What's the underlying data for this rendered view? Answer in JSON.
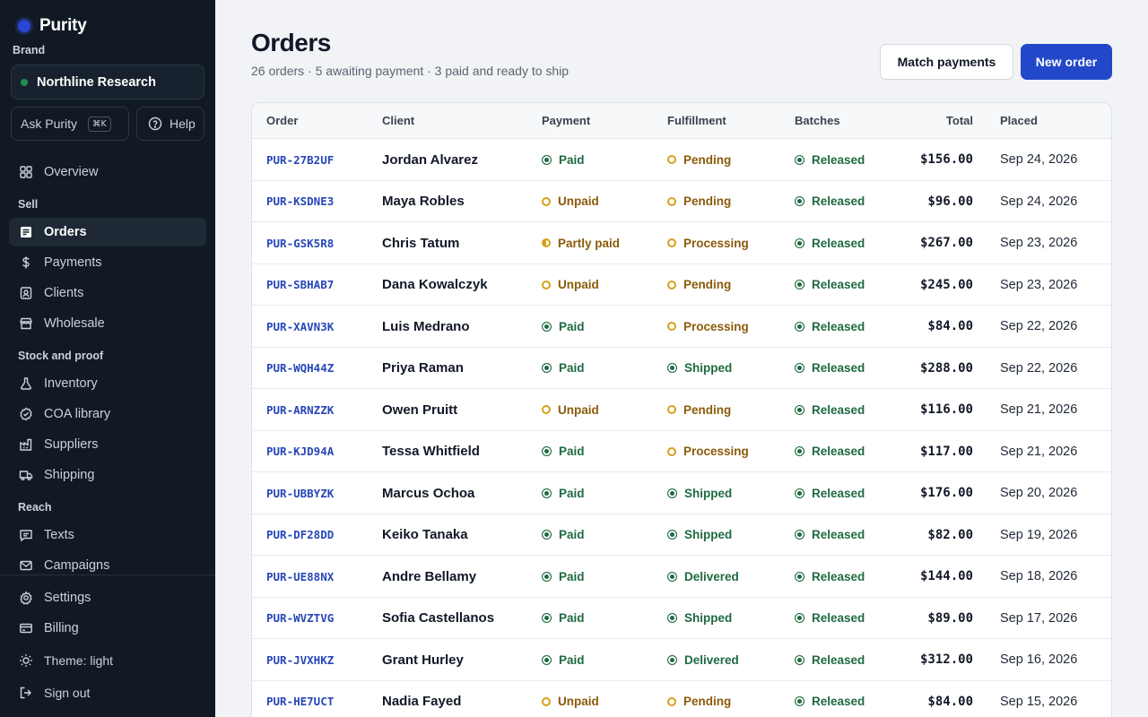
{
  "app": {
    "name": "Purity"
  },
  "sidebar": {
    "brand_label": "Brand",
    "brand_name": "Northline Research",
    "ask_label": "Ask Purity",
    "ask_shortcut": "⌘K",
    "help_label": "Help",
    "overview": "Overview",
    "sections": {
      "sell": "Sell",
      "stock": "Stock and proof",
      "reach": "Reach"
    },
    "items": {
      "orders": "Orders",
      "payments": "Payments",
      "clients": "Clients",
      "wholesale": "Wholesale",
      "inventory": "Inventory",
      "coa": "COA library",
      "suppliers": "Suppliers",
      "shipping": "Shipping",
      "texts": "Texts",
      "campaigns": "Campaigns",
      "settings": "Settings",
      "billing": "Billing",
      "theme": "Theme: light",
      "signout": "Sign out"
    }
  },
  "header": {
    "title": "Orders",
    "subtitle": "26 orders · 5 awaiting payment · 3 paid and ready to ship",
    "match_label": "Match payments",
    "new_label": "New order"
  },
  "table": {
    "columns": {
      "order": "Order",
      "client": "Client",
      "payment": "Payment",
      "fulfillment": "Fulfillment",
      "batches": "Batches",
      "total": "Total",
      "placed": "Placed"
    },
    "rows": [
      {
        "order": "PUR-27B2UF",
        "client": "Jordan Alvarez",
        "payment": "Paid",
        "fulfillment": "Pending",
        "batches": "Released",
        "total": "$156.00",
        "placed": "Sep 24, 2026"
      },
      {
        "order": "PUR-KSDNE3",
        "client": "Maya Robles",
        "payment": "Unpaid",
        "fulfillment": "Pending",
        "batches": "Released",
        "total": "$96.00",
        "placed": "Sep 24, 2026"
      },
      {
        "order": "PUR-GSK5R8",
        "client": "Chris Tatum",
        "payment": "Partly paid",
        "fulfillment": "Processing",
        "batches": "Released",
        "total": "$267.00",
        "placed": "Sep 23, 2026"
      },
      {
        "order": "PUR-SBHAB7",
        "client": "Dana Kowalczyk",
        "payment": "Unpaid",
        "fulfillment": "Pending",
        "batches": "Released",
        "total": "$245.00",
        "placed": "Sep 23, 2026"
      },
      {
        "order": "PUR-XAVN3K",
        "client": "Luis Medrano",
        "payment": "Paid",
        "fulfillment": "Processing",
        "batches": "Released",
        "total": "$84.00",
        "placed": "Sep 22, 2026"
      },
      {
        "order": "PUR-WQH44Z",
        "client": "Priya Raman",
        "payment": "Paid",
        "fulfillment": "Shipped",
        "batches": "Released",
        "total": "$288.00",
        "placed": "Sep 22, 2026"
      },
      {
        "order": "PUR-ARNZZK",
        "client": "Owen Pruitt",
        "payment": "Unpaid",
        "fulfillment": "Pending",
        "batches": "Released",
        "total": "$116.00",
        "placed": "Sep 21, 2026"
      },
      {
        "order": "PUR-KJD94A",
        "client": "Tessa Whitfield",
        "payment": "Paid",
        "fulfillment": "Processing",
        "batches": "Released",
        "total": "$117.00",
        "placed": "Sep 21, 2026"
      },
      {
        "order": "PUR-UBBYZK",
        "client": "Marcus Ochoa",
        "payment": "Paid",
        "fulfillment": "Shipped",
        "batches": "Released",
        "total": "$176.00",
        "placed": "Sep 20, 2026"
      },
      {
        "order": "PUR-DF28DD",
        "client": "Keiko Tanaka",
        "payment": "Paid",
        "fulfillment": "Shipped",
        "batches": "Released",
        "total": "$82.00",
        "placed": "Sep 19, 2026"
      },
      {
        "order": "PUR-UE88NX",
        "client": "Andre Bellamy",
        "payment": "Paid",
        "fulfillment": "Delivered",
        "batches": "Released",
        "total": "$144.00",
        "placed": "Sep 18, 2026"
      },
      {
        "order": "PUR-WVZTVG",
        "client": "Sofia Castellanos",
        "payment": "Paid",
        "fulfillment": "Shipped",
        "batches": "Released",
        "total": "$89.00",
        "placed": "Sep 17, 2026"
      },
      {
        "order": "PUR-JVXHKZ",
        "client": "Grant Hurley",
        "payment": "Paid",
        "fulfillment": "Delivered",
        "batches": "Released",
        "total": "$312.00",
        "placed": "Sep 16, 2026"
      },
      {
        "order": "PUR-HE7UCT",
        "client": "Nadia Fayed",
        "payment": "Unpaid",
        "fulfillment": "Pending",
        "batches": "Released",
        "total": "$84.00",
        "placed": "Sep 15, 2026"
      }
    ]
  },
  "colors": {
    "primary": "#2347c9",
    "sidebar_bg": "#111a24",
    "status_green": "#1e6a41",
    "status_amber": "#d7a01a"
  }
}
